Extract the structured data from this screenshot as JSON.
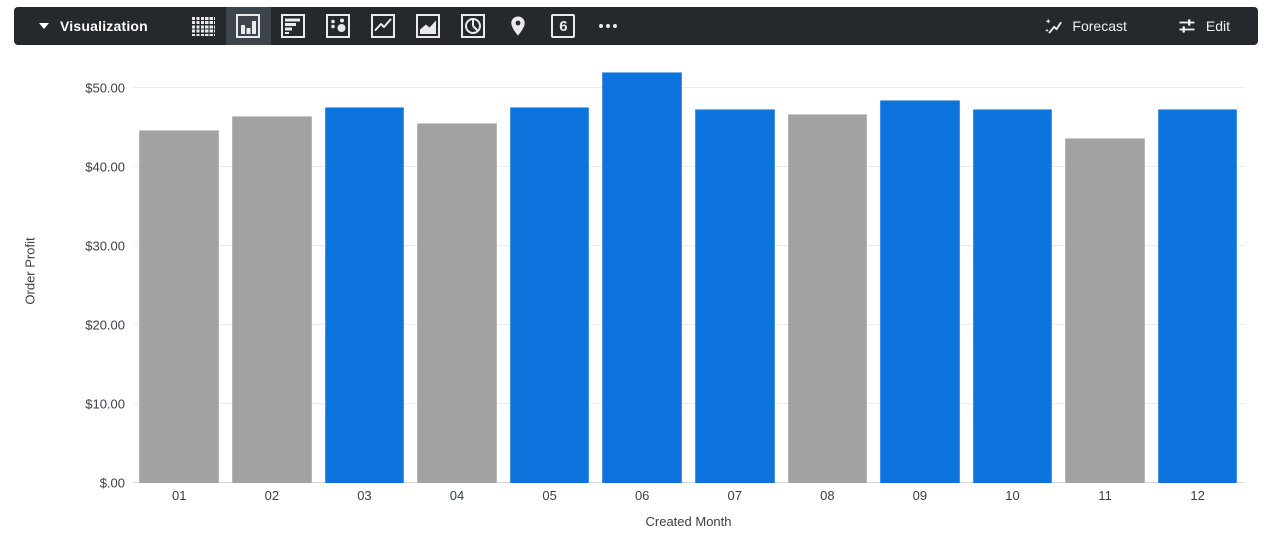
{
  "toolbar": {
    "visualization_label": "Visualization",
    "single_value_icon_text": "6",
    "forecast_label": "Forecast",
    "edit_label": "Edit",
    "icon_names": [
      "table",
      "column-chart",
      "bar-chart",
      "scatter",
      "line-chart",
      "area-chart",
      "pie-chart",
      "map",
      "single-value",
      "more"
    ],
    "selected_icon": "column-chart",
    "colors": {
      "toolbar_bg": "#25292e",
      "selected_bg": "#3e444b",
      "icon": "#e8eaed"
    }
  },
  "chart_data": {
    "type": "bar",
    "title": "",
    "xlabel": "Created Month",
    "ylabel": "Order Profit",
    "categories": [
      "01",
      "02",
      "03",
      "04",
      "05",
      "06",
      "07",
      "08",
      "09",
      "10",
      "11",
      "12"
    ],
    "values": [
      44.6,
      46.4,
      47.6,
      45.6,
      47.6,
      52.0,
      47.3,
      46.7,
      48.5,
      47.3,
      43.7,
      47.3
    ],
    "bar_colors": [
      "gray",
      "gray",
      "blue",
      "gray",
      "blue",
      "blue",
      "blue",
      "gray",
      "blue",
      "blue",
      "gray",
      "blue"
    ],
    "palette": {
      "blue": "#0d73dd",
      "gray": "#a2a2a2"
    },
    "ylim": [
      0,
      53.5
    ],
    "yticks": [
      {
        "label": "$50.00",
        "value": 50
      },
      {
        "label": "$40.00",
        "value": 40
      },
      {
        "label": "$30.00",
        "value": 30
      },
      {
        "label": "$20.00",
        "value": 20
      },
      {
        "label": "$10.00",
        "value": 10
      },
      {
        "label": "$.00",
        "value": 0
      }
    ],
    "grid": true,
    "legend": "none"
  }
}
